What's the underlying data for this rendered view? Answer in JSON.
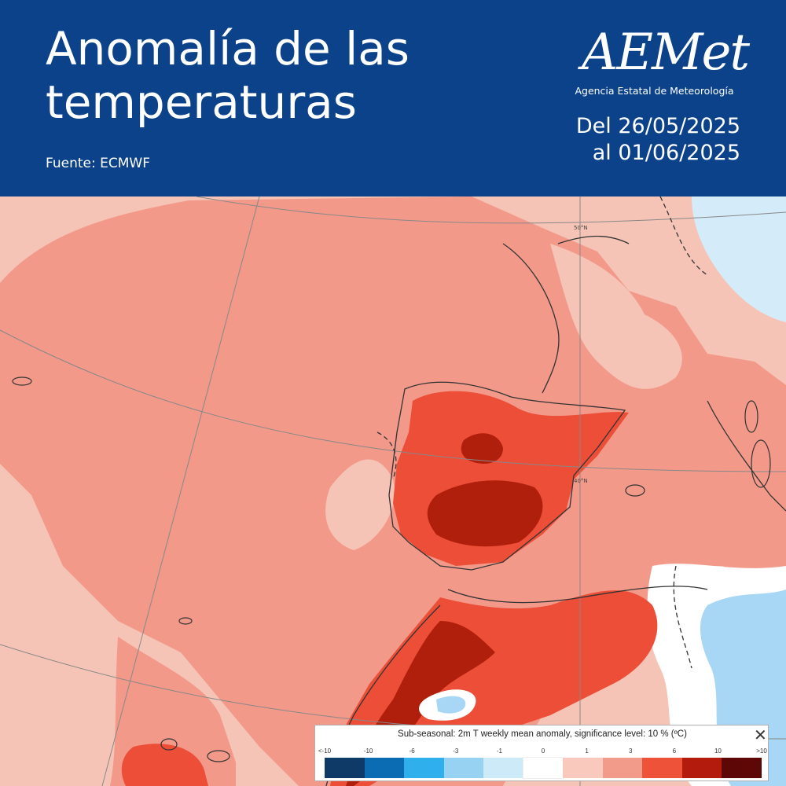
{
  "header": {
    "title_line1": "Anomalía de las",
    "title_line2": "temperaturas",
    "source": "Fuente: ECMWF",
    "logo_text": "AEMet",
    "agency": "Agencia Estatal de Meteorología",
    "date_line1": "Del 26/05/2025",
    "date_line2": "al 01/06/2025"
  },
  "map": {
    "lat_label_1": "50°N",
    "lat_label_2": "40°N",
    "colors": {
      "ocean_mild": "#f6c4b6",
      "warm_1_3": "#f2998a",
      "warm_3_6": "#ec4e38",
      "warm_6_10": "#b01e0c",
      "white_band": "#ffffff",
      "cool_0_1": "#d4ecfa",
      "cool_1_3": "#a7d7f5"
    }
  },
  "legend": {
    "title": "Sub-seasonal: 2m T weekly mean anomaly, significance level: 10 % (ºC)",
    "close": "✕",
    "labels": [
      "<-10",
      "-10",
      "-6",
      "-3",
      "-1",
      "0",
      "1",
      "3",
      "6",
      "10",
      ">10"
    ],
    "colors": [
      "#0f3a68",
      "#0c6cb3",
      "#2fb0ed",
      "#97d2f2",
      "#cdeaf9",
      "#ffffff",
      "#f9c9bd",
      "#f39b8a",
      "#ee5238",
      "#b31b0c",
      "#5e0707"
    ]
  }
}
